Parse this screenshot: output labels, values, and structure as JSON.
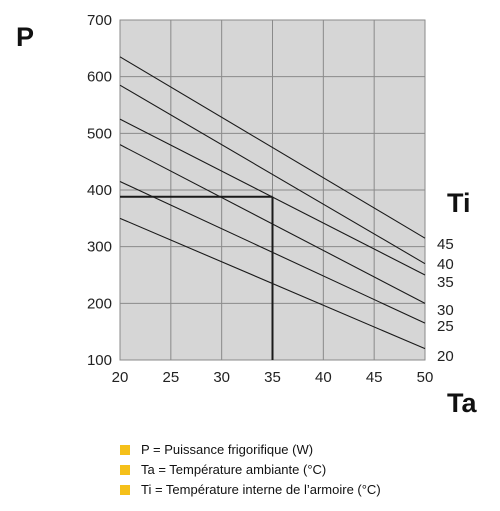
{
  "colors": {
    "bullet": "#f5c01a",
    "plot_bg": "#d6d6d6",
    "grid": "#8a8a8a",
    "line": "#1a1a1a"
  },
  "chart_data": {
    "type": "line",
    "ylabel": "P",
    "xlabel": "Ta",
    "legend_title": "Ti",
    "xlim": [
      20,
      50
    ],
    "ylim": [
      100,
      700
    ],
    "x_ticks": [
      "20",
      "25",
      "30",
      "35",
      "40",
      "45",
      "50"
    ],
    "y_ticks": [
      "100",
      "200",
      "300",
      "400",
      "500",
      "600",
      "700"
    ],
    "grid": true,
    "x": [
      20,
      50
    ],
    "series": [
      {
        "name": "45",
        "values": [
          635,
          315
        ]
      },
      {
        "name": "40",
        "values": [
          585,
          270
        ]
      },
      {
        "name": "35",
        "values": [
          525,
          250
        ]
      },
      {
        "name": "30",
        "values": [
          480,
          200
        ]
      },
      {
        "name": "25",
        "values": [
          415,
          165
        ]
      },
      {
        "name": "20",
        "values": [
          350,
          120
        ]
      }
    ],
    "series_label_order": [
      "45",
      "40",
      "35",
      "30",
      "25",
      "20"
    ],
    "reference": {
      "x": 35,
      "y": 388
    }
  },
  "legend": [
    {
      "text": "P = Puissance frigorifique (W)"
    },
    {
      "text": "Ta = Température ambiante (°C)"
    },
    {
      "text": "Ti = Température interne de l’armoire (°C)"
    }
  ]
}
